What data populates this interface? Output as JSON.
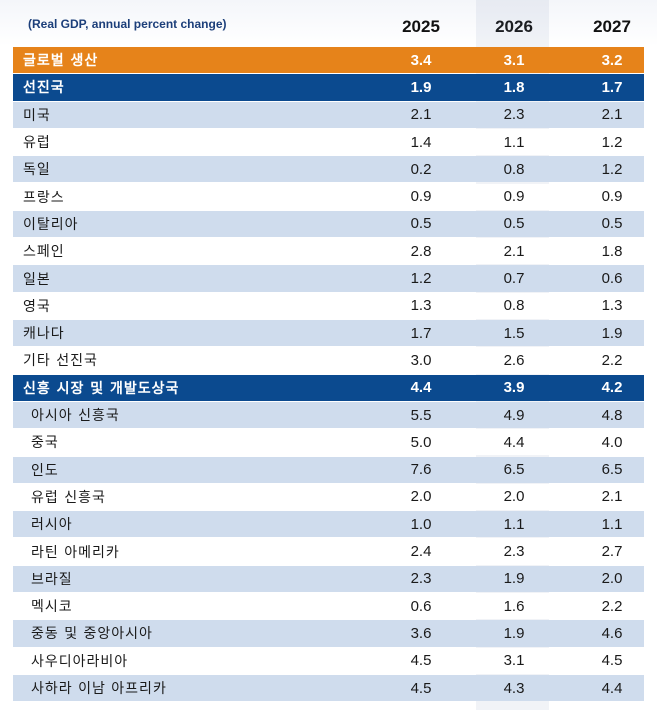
{
  "header": {
    "unit": "(Real GDP, annual percent change)",
    "years": [
      "2025",
      "2026",
      "2027"
    ]
  },
  "rows": [
    {
      "label": "글로벌 생산",
      "v": [
        "3.4",
        "3.1",
        "3.2"
      ],
      "kind": "world"
    },
    {
      "label": "선진국",
      "v": [
        "1.9",
        "1.8",
        "1.7"
      ],
      "kind": "group"
    },
    {
      "label": "미국",
      "v": [
        "2.1",
        "2.3",
        "2.1"
      ],
      "kind": "item"
    },
    {
      "label": "유럽",
      "v": [
        "1.4",
        "1.1",
        "1.2"
      ],
      "kind": "item"
    },
    {
      "label": "독일",
      "v": [
        "0.2",
        "0.8",
        "1.2"
      ],
      "kind": "item"
    },
    {
      "label": "프랑스",
      "v": [
        "0.9",
        "0.9",
        "0.9"
      ],
      "kind": "item"
    },
    {
      "label": "이탈리아",
      "v": [
        "0.5",
        "0.5",
        "0.5"
      ],
      "kind": "item"
    },
    {
      "label": "스페인",
      "v": [
        "2.8",
        "2.1",
        "1.8"
      ],
      "kind": "item"
    },
    {
      "label": "일본",
      "v": [
        "1.2",
        "0.7",
        "0.6"
      ],
      "kind": "item"
    },
    {
      "label": "영국",
      "v": [
        "1.3",
        "0.8",
        "1.3"
      ],
      "kind": "item"
    },
    {
      "label": "캐나다",
      "v": [
        "1.7",
        "1.5",
        "1.9"
      ],
      "kind": "item"
    },
    {
      "label": "기타 선진국",
      "v": [
        "3.0",
        "2.6",
        "2.2"
      ],
      "kind": "item"
    },
    {
      "label": "신흥 시장 및 개발도상국",
      "v": [
        "4.4",
        "3.9",
        "4.2"
      ],
      "kind": "group"
    },
    {
      "label": "아시아 신흥국",
      "v": [
        "5.5",
        "4.9",
        "4.8"
      ],
      "kind": "item2"
    },
    {
      "label": "중국",
      "v": [
        "5.0",
        "4.4",
        "4.0"
      ],
      "kind": "item2"
    },
    {
      "label": "인도",
      "v": [
        "7.6",
        "6.5",
        "6.5"
      ],
      "kind": "item2"
    },
    {
      "label": "유럽 신흥국",
      "v": [
        "2.0",
        "2.0",
        "2.1"
      ],
      "kind": "item2"
    },
    {
      "label": "러시아",
      "v": [
        "1.0",
        "1.1",
        "1.1"
      ],
      "kind": "item2"
    },
    {
      "label": "라틴 아메리카",
      "v": [
        "2.4",
        "2.3",
        "2.7"
      ],
      "kind": "item2"
    },
    {
      "label": "브라질",
      "v": [
        "2.3",
        "1.9",
        "2.0"
      ],
      "kind": "item2"
    },
    {
      "label": "멕시코",
      "v": [
        "0.6",
        "1.6",
        "2.2"
      ],
      "kind": "item2"
    },
    {
      "label": "중동 및 중앙아시아",
      "v": [
        "3.6",
        "1.9",
        "4.6"
      ],
      "kind": "item2"
    },
    {
      "label": "사우디아라비아",
      "v": [
        "4.5",
        "3.1",
        "4.5"
      ],
      "kind": "item2"
    },
    {
      "label": "사하라 이남 아프리카",
      "v": [
        "4.5",
        "4.3",
        "4.4"
      ],
      "kind": "item2"
    }
  ],
  "colors": {
    "world": "#e6831a",
    "group": "#0b4a8f",
    "stripe": "#cfdced"
  }
}
